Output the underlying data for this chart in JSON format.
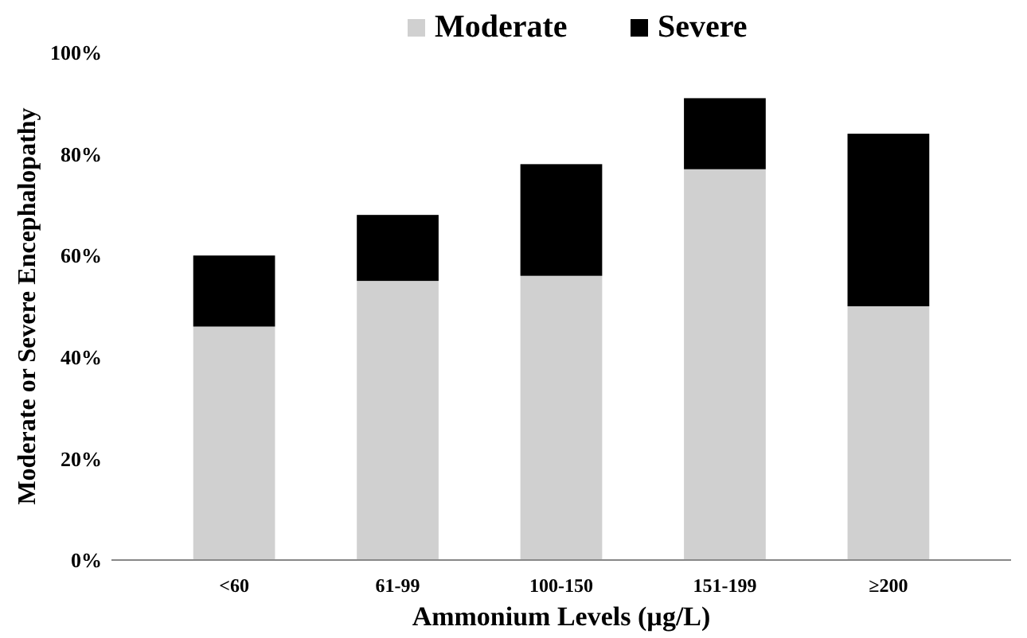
{
  "chart_data": {
    "type": "bar",
    "stacked": true,
    "xlabel": "Ammonium Levels (µg/L)",
    "ylabel": "Moderate or Severe Encephalopathy",
    "categories": [
      "<60",
      "61-99",
      "100-150",
      "151-199",
      "≥200"
    ],
    "series": [
      {
        "name": "Moderate",
        "color": "#d0d0d0",
        "values": [
          46,
          55,
          56,
          77,
          50
        ]
      },
      {
        "name": "Severe",
        "color": "#000000",
        "values": [
          14,
          13,
          22,
          14,
          34
        ]
      }
    ],
    "ylim": [
      0,
      100
    ],
    "yticks": [
      {
        "value": 0,
        "label": "0%"
      },
      {
        "value": 20,
        "label": "20%"
      },
      {
        "value": 40,
        "label": "40%"
      },
      {
        "value": 60,
        "label": "60%"
      },
      {
        "value": 80,
        "label": "80%"
      },
      {
        "value": 100,
        "label": "100%"
      }
    ],
    "legend": "top",
    "grid": false
  }
}
